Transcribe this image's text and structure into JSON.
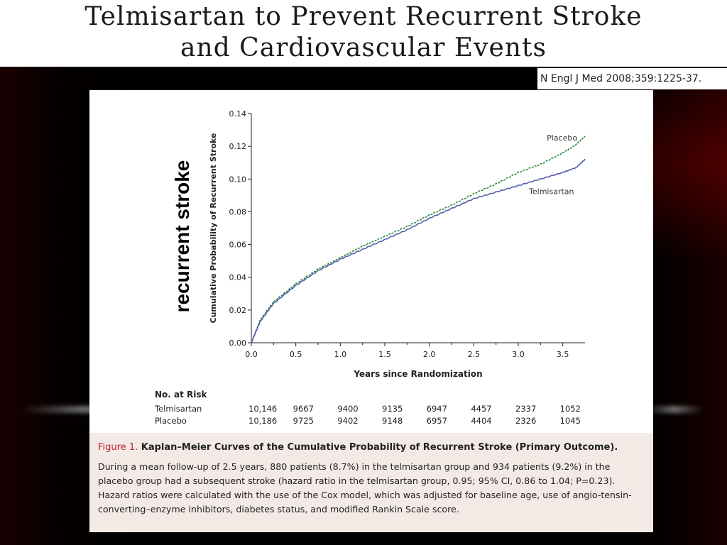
{
  "slide": {
    "title_line1": "Telmisartan to Prevent Recurrent Stroke",
    "title_line2": "and Cardiovascular Events",
    "citation": "N Engl J Med 2008;359:1225-37.",
    "overlay_label": "recurrent stroke"
  },
  "chart_data": {
    "type": "line",
    "title": "",
    "xlabel": "Years since Randomization",
    "ylabel": "Cumulative Probability of Recurrent Stroke",
    "xlim": [
      0,
      3.75
    ],
    "ylim": [
      0,
      0.14
    ],
    "x_ticks": [
      "0.0",
      "0.5",
      "1.0",
      "1.5",
      "2.0",
      "2.5",
      "3.0",
      "3.5"
    ],
    "y_ticks": [
      "0.00",
      "0.02",
      "0.04",
      "0.06",
      "0.08",
      "0.10",
      "0.12",
      "0.14"
    ],
    "grid": false,
    "series": [
      {
        "name": "Placebo",
        "color": "#2e8b3a",
        "dashed": true,
        "x": [
          0,
          0.1,
          0.25,
          0.5,
          0.75,
          1.0,
          1.25,
          1.5,
          1.75,
          2.0,
          2.25,
          2.5,
          2.75,
          3.0,
          3.25,
          3.5,
          3.65,
          3.75
        ],
        "y": [
          0,
          0.014,
          0.025,
          0.036,
          0.045,
          0.052,
          0.059,
          0.065,
          0.071,
          0.078,
          0.084,
          0.091,
          0.097,
          0.104,
          0.109,
          0.116,
          0.121,
          0.126
        ]
      },
      {
        "name": "Telmisartan",
        "color": "#5560b0",
        "dashed": false,
        "x": [
          0,
          0.1,
          0.25,
          0.5,
          0.75,
          1.0,
          1.25,
          1.5,
          1.75,
          2.0,
          2.25,
          2.5,
          2.75,
          3.0,
          3.25,
          3.5,
          3.65,
          3.75
        ],
        "y": [
          0,
          0.013,
          0.024,
          0.035,
          0.044,
          0.051,
          0.057,
          0.063,
          0.069,
          0.076,
          0.082,
          0.088,
          0.092,
          0.096,
          0.1,
          0.104,
          0.107,
          0.112
        ]
      }
    ],
    "risk_table": {
      "header": "No. at Risk",
      "rows": [
        {
          "label": "Telmisartan",
          "values": [
            "10,146",
            "9667",
            "9400",
            "9135",
            "6947",
            "4457",
            "2337",
            "1052"
          ]
        },
        {
          "label": "Placebo",
          "values": [
            "10,186",
            "9725",
            "9402",
            "9148",
            "6957",
            "4404",
            "2326",
            "1045"
          ]
        }
      ]
    }
  },
  "caption": {
    "figure_label": "Figure 1.",
    "heading": "Kaplan–Meier Curves of the Cumulative Probability of Recurrent Stroke (Primary Outcome).",
    "body": "During a mean follow-up of 2.5 years, 880 patients (8.7%) in the telmisartan group and 934 patients (9.2%) in the placebo group had a subsequent stroke (hazard ratio in the telmisartan group, 0.95; 95% CI, 0.86 to 1.04; P=0.23). Hazard ratios were calculated with the use of the Cox model, which was adjusted for baseline age, use of angio-tensin-converting–enzyme inhibitors, diabetes status, and modified Rankin Scale score."
  }
}
